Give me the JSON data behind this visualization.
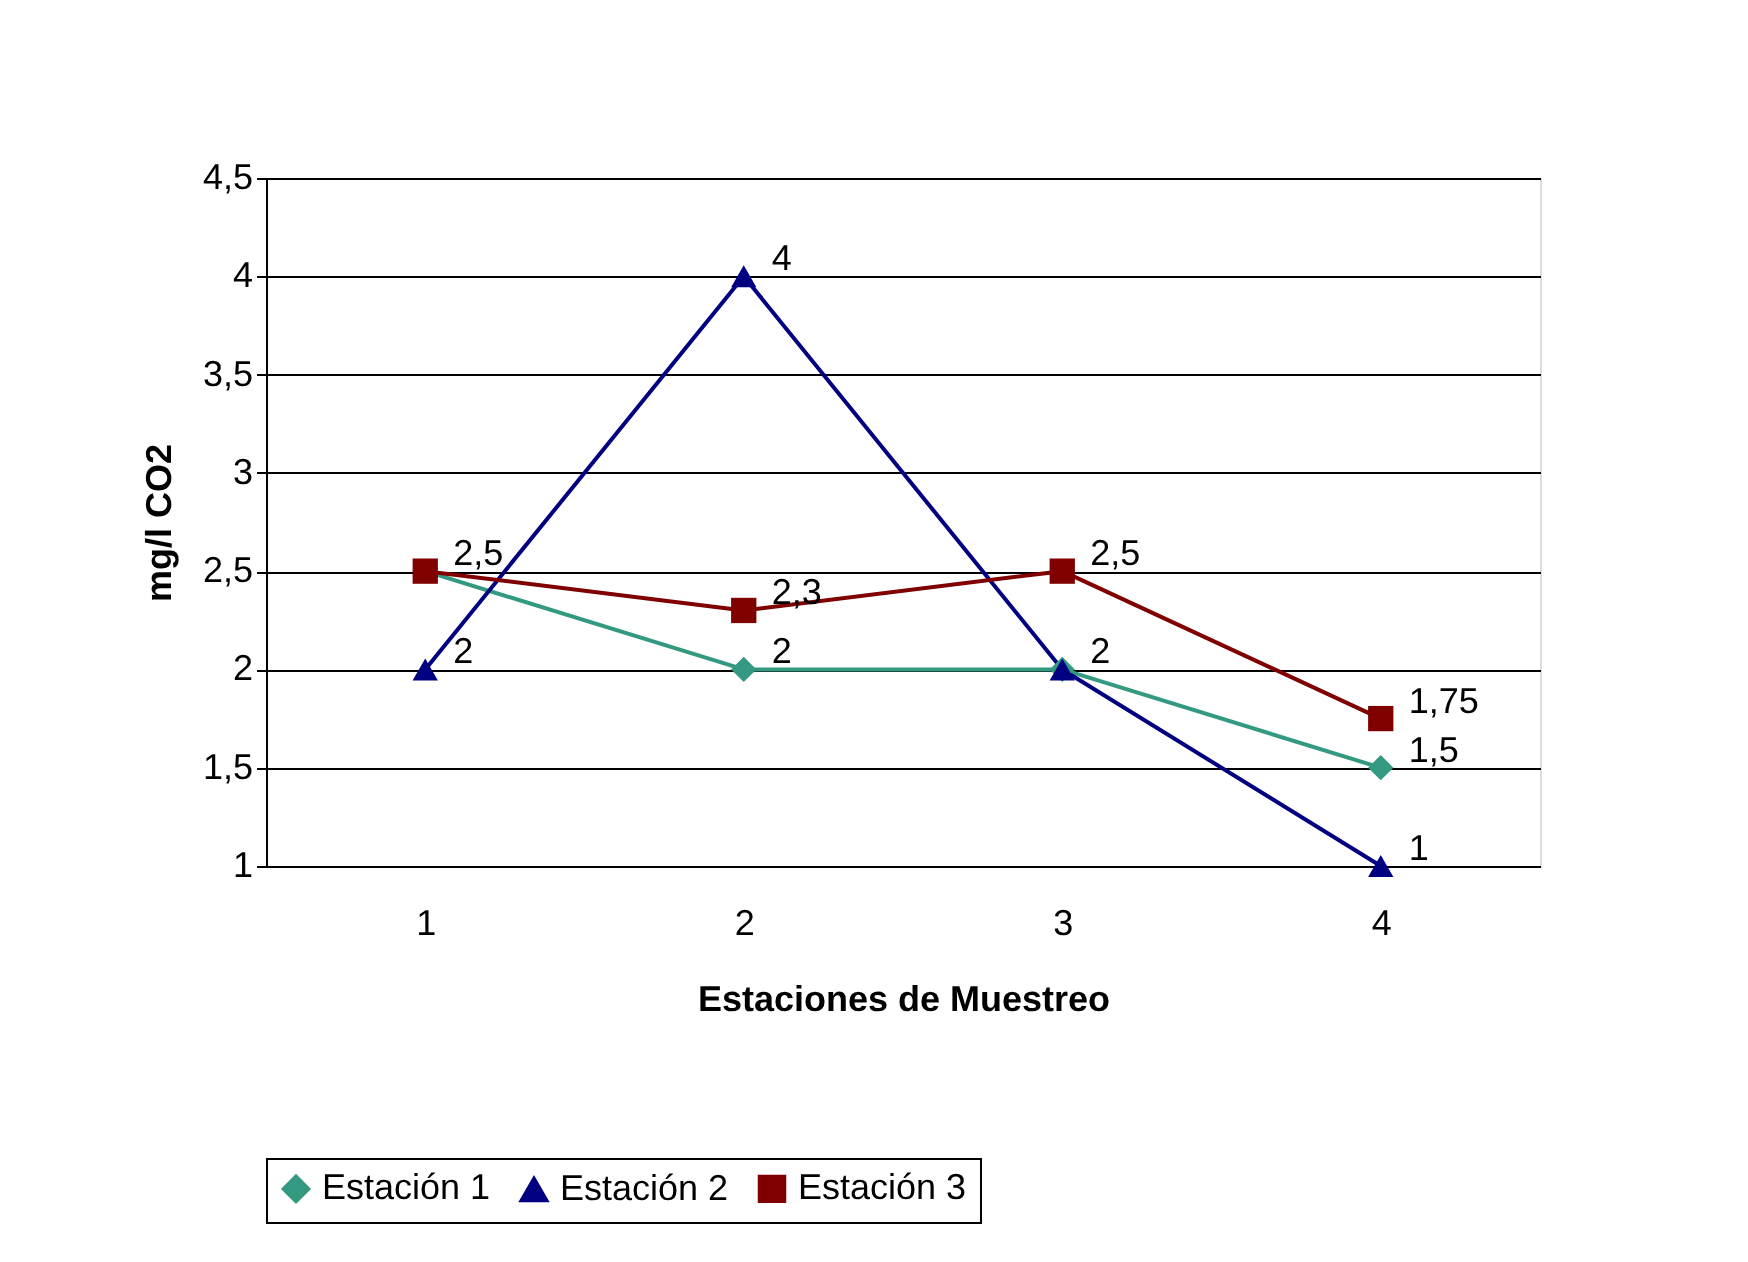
{
  "chart_data": {
    "type": "line",
    "xlabel": "Estaciones de Muestreo",
    "ylabel": "mg/l CO2",
    "categories": [
      "1",
      "2",
      "3",
      "4"
    ],
    "series": [
      {
        "name": "Estación 1",
        "color": "#339980",
        "marker": "diamond",
        "values": [
          2.5,
          2,
          2,
          1.5
        ],
        "value_labels": [
          "2,5",
          "2",
          "2",
          "1,5"
        ]
      },
      {
        "name": "Estación 2",
        "color": "#000080",
        "marker": "triangle",
        "values": [
          2,
          4,
          2,
          1
        ],
        "value_labels": [
          "2",
          "4",
          null,
          "1"
        ]
      },
      {
        "name": "Estación 3",
        "color": "#800000",
        "marker": "square",
        "values": [
          2.5,
          2.3,
          2.5,
          1.75
        ],
        "value_labels": [
          null,
          "2,3",
          "2,5",
          "1,75"
        ]
      }
    ],
    "ylim": [
      1,
      4.5
    ],
    "yticks": [
      1,
      {
        "value": 1.5,
        "label": "1,5"
      },
      2,
      {
        "value": 2.5,
        "label": "2,5"
      },
      3,
      {
        "value": 3.5,
        "label": "3,5"
      },
      4,
      {
        "value": 4.5,
        "label": "4,5"
      }
    ],
    "grid": "y",
    "legend": "bottom",
    "line_style": "solid"
  }
}
